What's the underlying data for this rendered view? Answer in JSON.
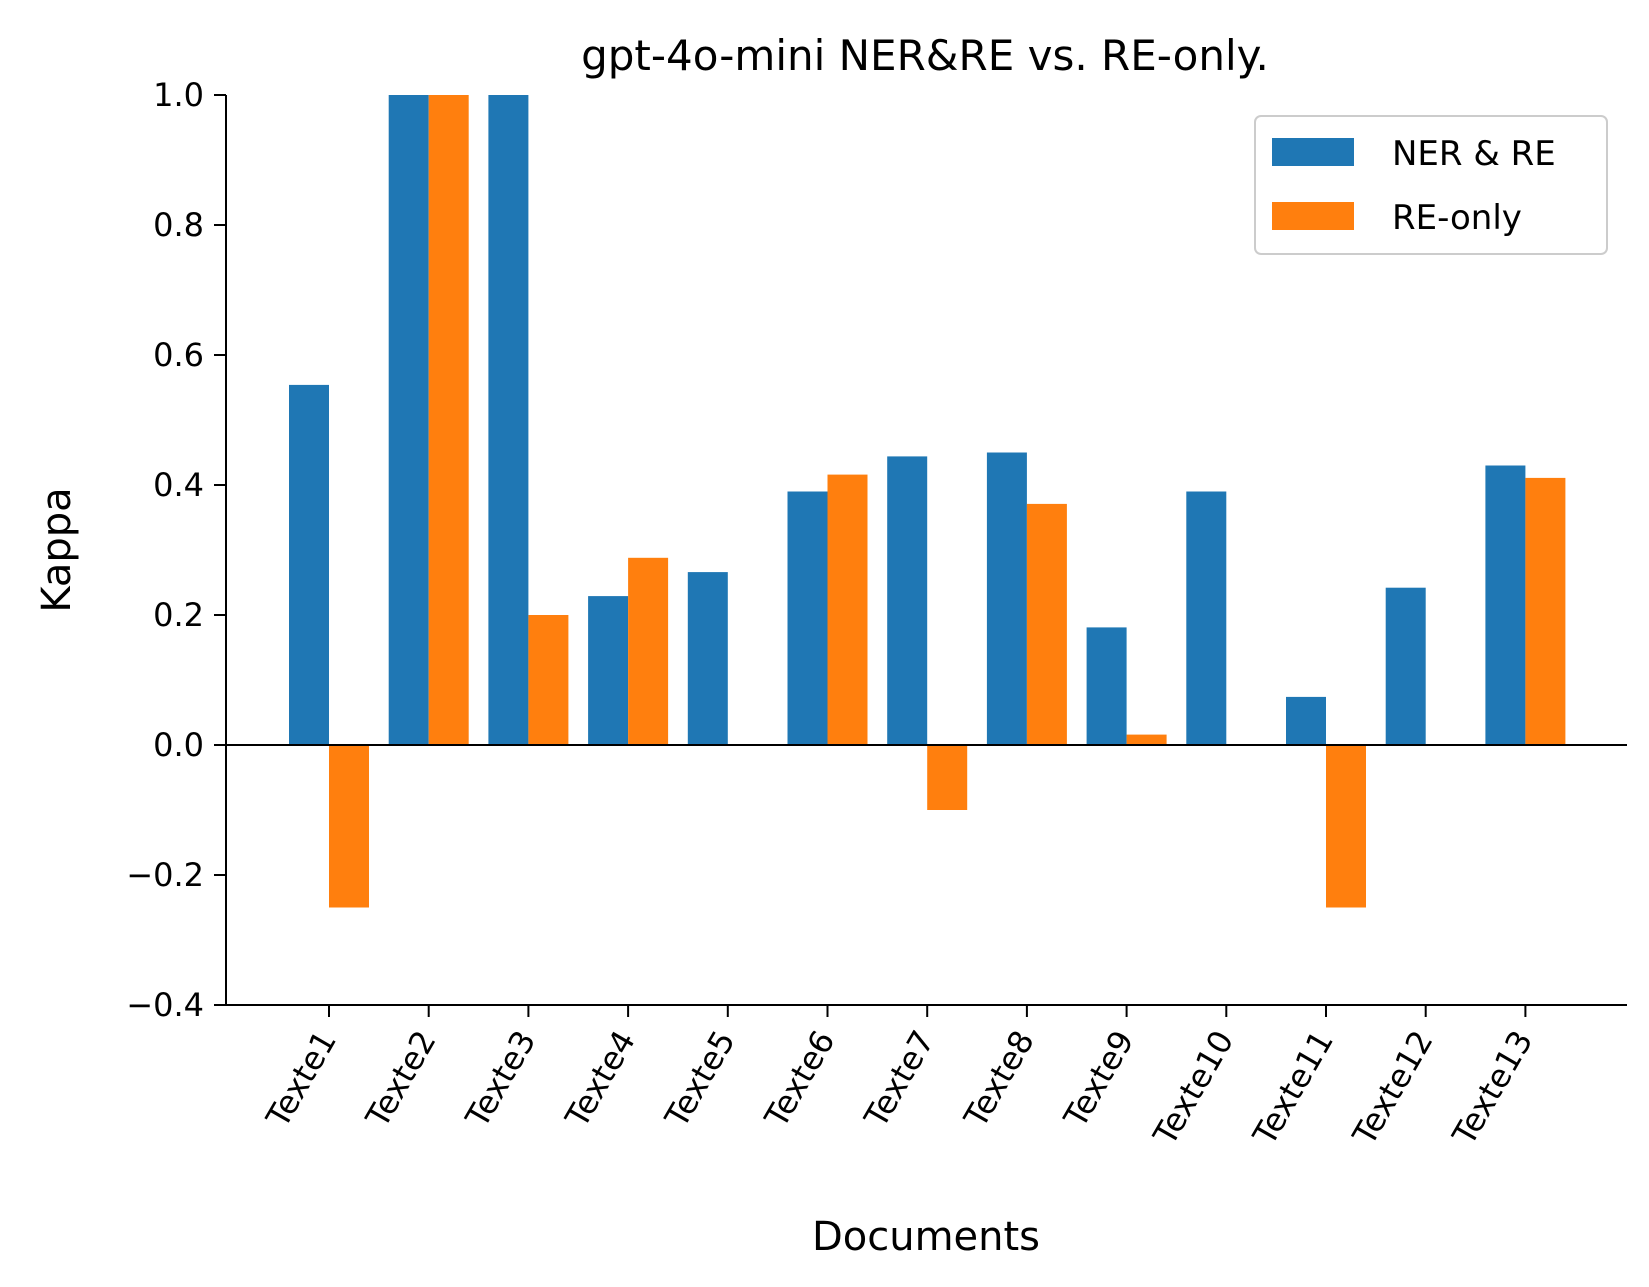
{
  "chart_data": {
    "type": "bar",
    "title": "gpt-4o-mini NER&RE vs. RE-only.",
    "xlabel": "Documents",
    "ylabel": "Kappa",
    "ylim": [
      -0.4,
      1.0
    ],
    "yticks": [
      -0.4,
      -0.2,
      0.0,
      0.2,
      0.4,
      0.6,
      0.8,
      1.0
    ],
    "ytick_labels": [
      "−0.4",
      "−0.2",
      "0.0",
      "0.2",
      "0.4",
      "0.6",
      "0.8",
      "1.0"
    ],
    "categories": [
      "Texte1",
      "Texte2",
      "Texte3",
      "Texte4",
      "Texte5",
      "Texte6",
      "Texte7",
      "Texte8",
      "Texte9",
      "Texte10",
      "Texte11",
      "Texte12",
      "Texte13"
    ],
    "series": [
      {
        "name": "NER & RE",
        "color": "#1f77b4",
        "values": [
          0.554,
          1.0,
          1.0,
          0.229,
          0.266,
          0.39,
          0.444,
          0.45,
          0.181,
          0.39,
          0.074,
          0.242,
          0.43
        ]
      },
      {
        "name": "RE-only",
        "color": "#ff7f0e",
        "values": [
          -0.25,
          1.0,
          0.2,
          0.288,
          0.0,
          0.416,
          -0.1,
          0.371,
          0.016,
          0.0,
          -0.25,
          0.0,
          0.411
        ]
      }
    ],
    "legend": "top-right",
    "grid": false,
    "zero_line": true
  }
}
